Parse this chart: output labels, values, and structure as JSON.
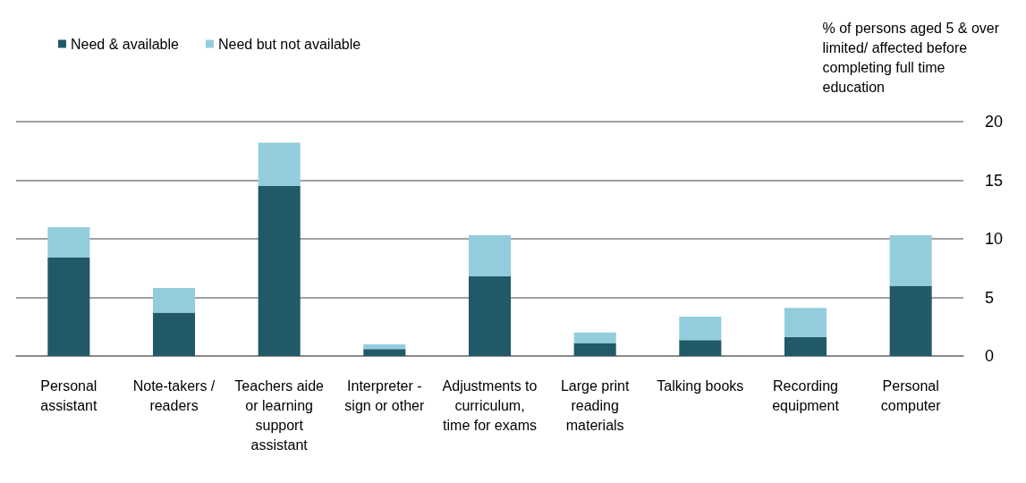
{
  "chart_data": {
    "type": "bar",
    "stacked": true,
    "ylabel": "% of persons aged 5 & over limited/ affected before completing full time education",
    "categories": [
      "Personal assistant",
      "Note-takers / readers",
      "Teachers aide or learning support assistant",
      "Interpreter - sign or other",
      "Adjustments to curriculum, time for exams",
      "Large print reading materials",
      "Talking books",
      "Recording equipment",
      "Personal computer"
    ],
    "series": [
      {
        "name": "Need & available",
        "color": "#215968",
        "values": [
          8.4,
          3.7,
          14.5,
          0.6,
          6.8,
          1.1,
          1.35,
          1.6,
          6.0
        ]
      },
      {
        "name": "Need but not available",
        "color": "#93cddd",
        "values": [
          2.6,
          2.1,
          3.7,
          0.4,
          3.5,
          0.9,
          2.0,
          2.5,
          4.3
        ]
      }
    ],
    "ylim": [
      0,
      20
    ],
    "yticks": [
      0,
      5,
      10,
      15,
      20
    ],
    "grid": "y",
    "legend": "top left"
  }
}
